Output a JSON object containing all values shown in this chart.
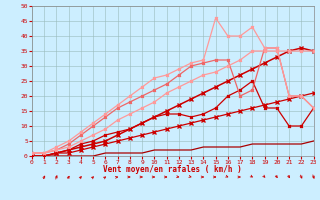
{
  "bg_color": "#cceeff",
  "grid_color": "#99bbbb",
  "xlabel": "Vent moyen/en rafales ( km/h )",
  "xlim": [
    0,
    23
  ],
  "ylim": [
    0,
    50
  ],
  "yticks": [
    0,
    5,
    10,
    15,
    20,
    25,
    30,
    35,
    40,
    45,
    50
  ],
  "xticks": [
    0,
    1,
    2,
    3,
    4,
    5,
    6,
    7,
    8,
    9,
    10,
    11,
    12,
    13,
    14,
    15,
    16,
    17,
    18,
    19,
    20,
    21,
    22,
    23
  ],
  "lines": [
    {
      "x": [
        0,
        1,
        2,
        3,
        4,
        5,
        6,
        7,
        8,
        9,
        10,
        11,
        12,
        13,
        14,
        15,
        16,
        17,
        18,
        19,
        20,
        21,
        22,
        23
      ],
      "y": [
        0,
        0,
        0,
        0,
        0,
        0,
        1,
        1,
        1,
        1,
        2,
        2,
        2,
        2,
        3,
        3,
        3,
        3,
        4,
        4,
        4,
        4,
        4,
        5
      ],
      "color": "#aa0000",
      "lw": 0.9,
      "marker": null
    },
    {
      "x": [
        0,
        1,
        2,
        3,
        4,
        5,
        6,
        7,
        8,
        9,
        10,
        11,
        12,
        13,
        14,
        15,
        16,
        17,
        18,
        19,
        20,
        21,
        22,
        23
      ],
      "y": [
        0,
        0,
        1,
        1,
        2,
        3,
        4,
        5,
        6,
        7,
        8,
        9,
        10,
        11,
        12,
        13,
        14,
        15,
        16,
        17,
        18,
        19,
        20,
        21
      ],
      "color": "#cc0000",
      "lw": 0.9,
      "marker": "x",
      "ms": 2.5
    },
    {
      "x": [
        0,
        1,
        2,
        3,
        4,
        5,
        6,
        7,
        8,
        9,
        10,
        11,
        12,
        13,
        14,
        15,
        16,
        17,
        18,
        19,
        20,
        21,
        22,
        23
      ],
      "y": [
        0,
        0,
        1,
        2,
        3,
        4,
        5,
        7,
        9,
        11,
        13,
        15,
        17,
        19,
        21,
        23,
        25,
        27,
        29,
        31,
        33,
        35,
        36,
        35
      ],
      "color": "#cc0000",
      "lw": 1.1,
      "marker": "x",
      "ms": 2.5
    },
    {
      "x": [
        0,
        1,
        2,
        3,
        4,
        5,
        6,
        7,
        8,
        9,
        10,
        11,
        12,
        13,
        14,
        15,
        16,
        17,
        18,
        19,
        20,
        21,
        22,
        23
      ],
      "y": [
        0,
        0,
        1,
        2,
        4,
        5,
        7,
        8,
        9,
        11,
        13,
        14,
        14,
        13,
        14,
        16,
        20,
        22,
        25,
        16,
        16,
        10,
        10,
        16
      ],
      "color": "#cc0000",
      "lw": 0.9,
      "marker": "x",
      "ms": 2.0
    },
    {
      "x": [
        0,
        1,
        2,
        3,
        4,
        5,
        6,
        7,
        8,
        9,
        10,
        11,
        12,
        13,
        14,
        15,
        16,
        17,
        18,
        19,
        20,
        21,
        22,
        23
      ],
      "y": [
        1,
        1,
        2,
        4,
        7,
        10,
        13,
        16,
        18,
        20,
        22,
        24,
        27,
        30,
        31,
        32,
        32,
        20,
        22,
        36,
        36,
        20,
        20,
        16
      ],
      "color": "#ee6666",
      "lw": 0.9,
      "marker": "x",
      "ms": 2.0
    },
    {
      "x": [
        0,
        1,
        2,
        3,
        4,
        5,
        6,
        7,
        8,
        9,
        10,
        11,
        12,
        13,
        14,
        15,
        16,
        17,
        18,
        19,
        20,
        21,
        22,
        23
      ],
      "y": [
        1,
        1,
        3,
        5,
        8,
        11,
        14,
        17,
        20,
        23,
        26,
        27,
        29,
        31,
        32,
        46,
        40,
        40,
        43,
        36,
        36,
        20,
        20,
        16
      ],
      "color": "#ff9999",
      "lw": 0.9,
      "marker": "x",
      "ms": 2.0
    },
    {
      "x": [
        0,
        1,
        2,
        3,
        4,
        5,
        6,
        7,
        8,
        9,
        10,
        11,
        12,
        13,
        14,
        15,
        16,
        17,
        18,
        19,
        20,
        21,
        22,
        23
      ],
      "y": [
        1,
        1,
        2,
        3,
        5,
        7,
        9,
        12,
        14,
        16,
        18,
        21,
        23,
        25,
        27,
        28,
        30,
        32,
        35,
        35,
        35,
        35,
        35,
        35
      ],
      "color": "#ff9999",
      "lw": 0.9,
      "marker": "x",
      "ms": 2.0
    }
  ],
  "wind_arrows": [
    {
      "x": 1,
      "rot": 50
    },
    {
      "x": 2,
      "rot": 60
    },
    {
      "x": 3,
      "rot": 45
    },
    {
      "x": 4,
      "rot": 35
    },
    {
      "x": 5,
      "rot": 30
    },
    {
      "x": 6,
      "rot": 25
    },
    {
      "x": 7,
      "rot": 5
    },
    {
      "x": 8,
      "rot": 0
    },
    {
      "x": 9,
      "rot": 0
    },
    {
      "x": 10,
      "rot": 0
    },
    {
      "x": 11,
      "rot": 0
    },
    {
      "x": 12,
      "rot": -5
    },
    {
      "x": 13,
      "rot": -10
    },
    {
      "x": 14,
      "rot": 0
    },
    {
      "x": 15,
      "rot": 0
    },
    {
      "x": 16,
      "rot": -15
    },
    {
      "x": 17,
      "rot": 0
    },
    {
      "x": 18,
      "rot": -20
    },
    {
      "x": 19,
      "rot": -30
    },
    {
      "x": 20,
      "rot": -40
    },
    {
      "x": 21,
      "rot": -45
    },
    {
      "x": 22,
      "rot": -55
    },
    {
      "x": 23,
      "rot": -60
    }
  ]
}
